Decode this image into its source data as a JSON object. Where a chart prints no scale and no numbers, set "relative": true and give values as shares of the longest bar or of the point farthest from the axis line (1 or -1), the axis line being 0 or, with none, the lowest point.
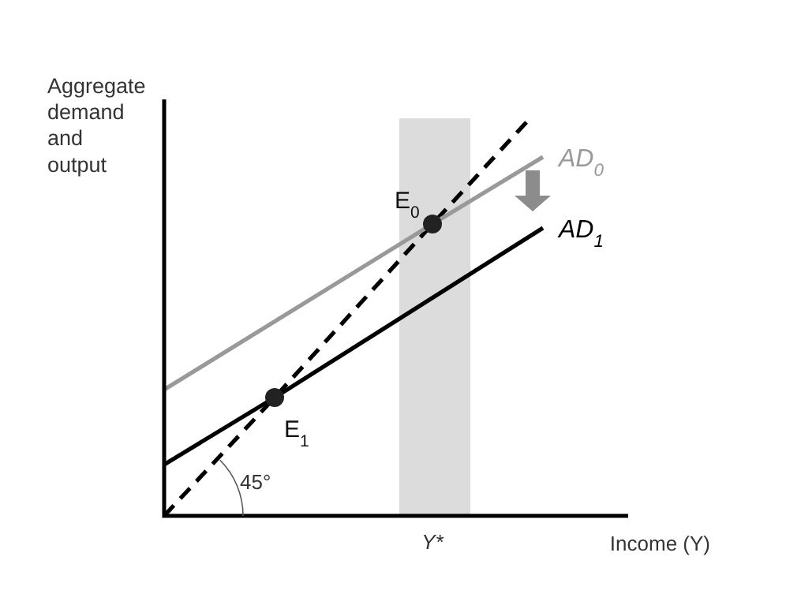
{
  "chart_data": {
    "type": "line",
    "relative": true,
    "xlabel": "Income (Y)",
    "ylabel": "Aggregate demand and output",
    "categories": [
      null,
      null,
      null,
      null,
      null,
      null,
      null,
      null,
      null,
      null,
      null,
      null,
      null,
      null,
      null,
      null,
      null,
      null,
      null,
      null,
      null,
      null,
      null,
      null,
      null
    ],
    "series": [
      {
        "color": "#000000",
        "line_style": "dashed",
        "values": [
          0,
          null,
          null,
          null,
          null,
          null,
          null,
          0.3,
          null,
          null,
          null,
          null,
          null,
          null,
          null,
          null,
          null,
          0.74,
          null,
          null,
          null,
          null,
          null,
          1,
          null
        ]
      },
      {
        "name": "AD$_{0}$",
        "color": "#999999",
        "line_style": "solid",
        "values": [
          0.32,
          null,
          null,
          null,
          null,
          null,
          null,
          null,
          null,
          null,
          null,
          null,
          null,
          null,
          null,
          null,
          null,
          0.74,
          null,
          null,
          null,
          null,
          null,
          null,
          0.91
        ]
      },
      {
        "name": "AD$_{1}$",
        "color": "#000000",
        "line_style": "solid",
        "values": [
          0.13,
          null,
          null,
          null,
          null,
          null,
          null,
          0.3,
          null,
          null,
          null,
          null,
          null,
          null,
          null,
          null,
          null,
          null,
          null,
          null,
          null,
          null,
          null,
          null,
          0.73
        ]
      }
    ],
    "annotations": [
      "E$_{0}$",
      "E$_{1}$",
      "45°",
      "Y*"
    ]
  }
}
